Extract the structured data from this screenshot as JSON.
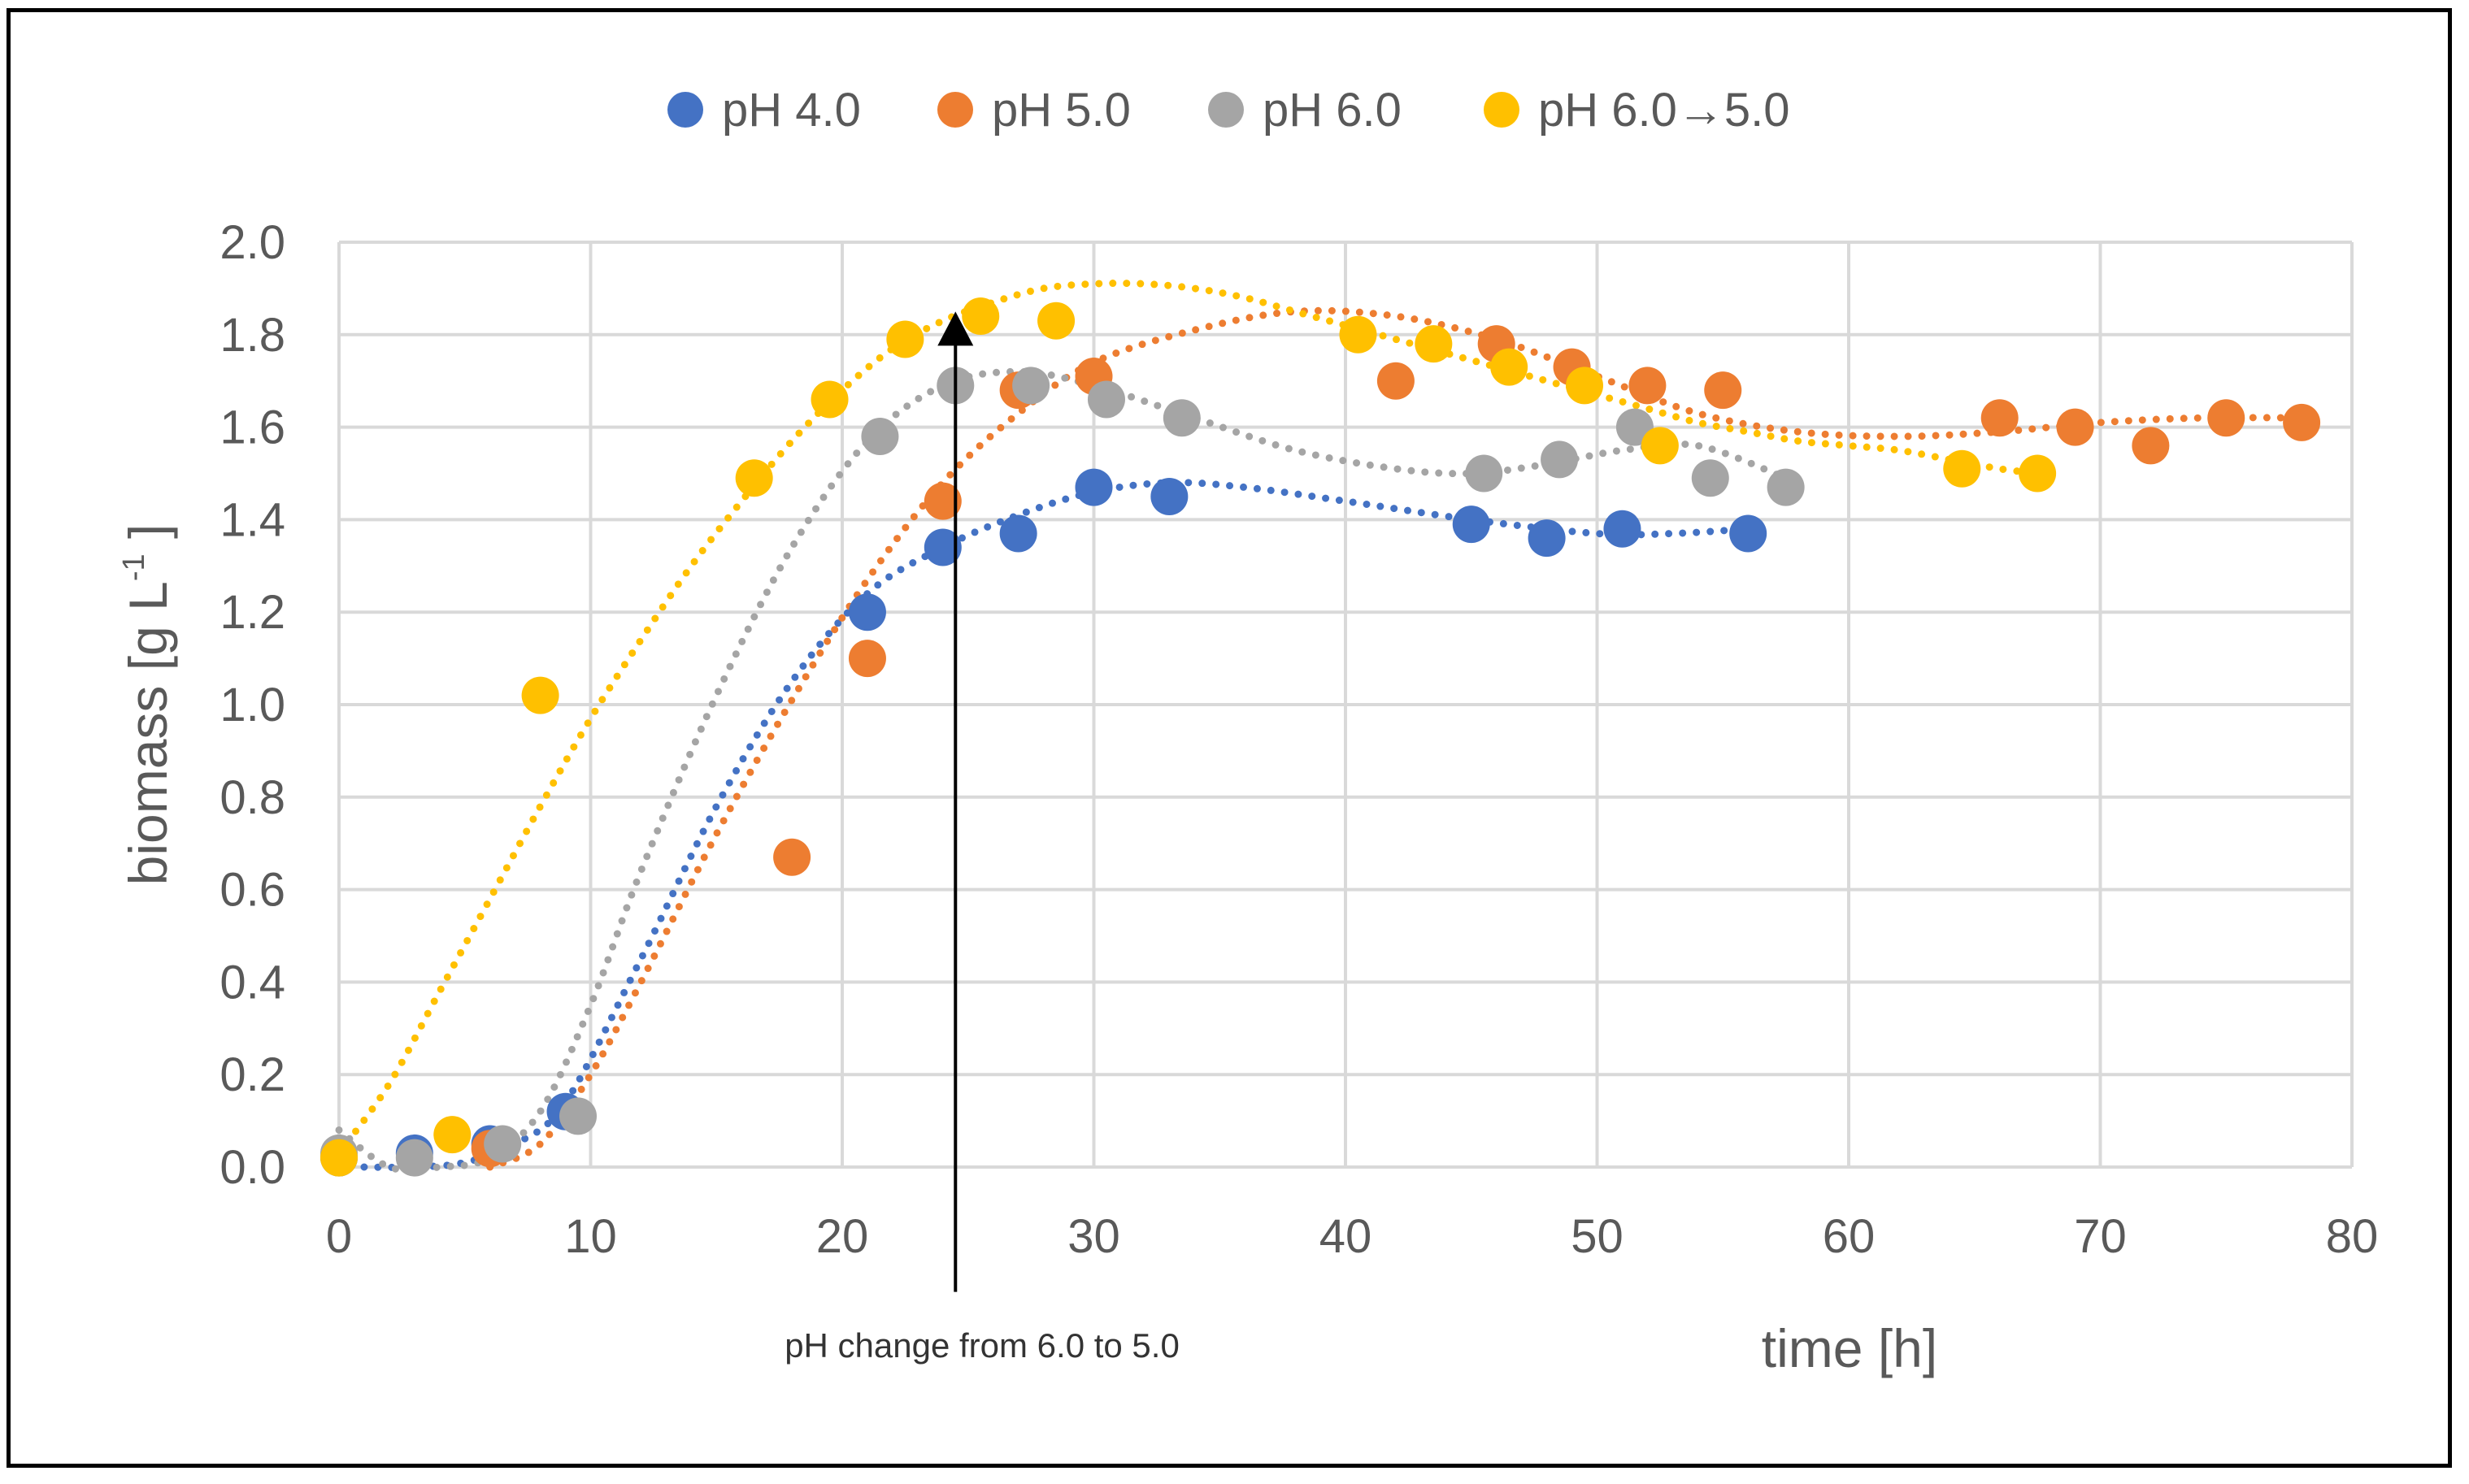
{
  "chart_data": {
    "type": "scatter",
    "title": "",
    "xlabel": "time [h]",
    "ylabel": {
      "prefix": "biomass [g L",
      "sup": "-1",
      "suffix": " ]"
    },
    "xlim": [
      0,
      80
    ],
    "ylim": [
      0,
      2.0
    ],
    "xticks": [
      "0",
      "10",
      "20",
      "30",
      "40",
      "50",
      "60",
      "70",
      "80"
    ],
    "yticks": [
      "0.0",
      "0.2",
      "0.4",
      "0.6",
      "0.8",
      "1.0",
      "1.2",
      "1.4",
      "1.6",
      "1.8",
      "2.0"
    ],
    "grid": true,
    "legend_position": "top",
    "series": [
      {
        "name": "pH 4.0",
        "color": "#4472C4",
        "x": [
          0,
          3,
          6,
          9,
          21,
          24,
          27,
          30,
          33,
          45,
          48,
          51,
          56
        ],
        "y": [
          0.02,
          0.03,
          0.05,
          0.12,
          1.2,
          1.34,
          1.37,
          1.47,
          1.45,
          1.39,
          1.36,
          1.38,
          1.37
        ],
        "trend_x": [
          1,
          3,
          5,
          7,
          9,
          12,
          15,
          18,
          21,
          24,
          27,
          30,
          33,
          36,
          40,
          45,
          50,
          53,
          56
        ],
        "trend_y": [
          0.0,
          0.0,
          0.01,
          0.05,
          0.14,
          0.45,
          0.78,
          1.05,
          1.24,
          1.34,
          1.41,
          1.46,
          1.48,
          1.47,
          1.44,
          1.4,
          1.37,
          1.37,
          1.38
        ]
      },
      {
        "name": "pH 5.0",
        "color": "#ED7D31",
        "x": [
          6,
          18,
          21,
          24,
          27,
          30,
          42,
          46,
          49,
          52,
          55,
          66,
          69,
          72,
          75,
          78
        ],
        "y": [
          0.04,
          0.67,
          1.1,
          1.44,
          1.68,
          1.71,
          1.7,
          1.78,
          1.73,
          1.69,
          1.68,
          1.62,
          1.6,
          1.56,
          1.62,
          1.61
        ],
        "trend_x": [
          6,
          8,
          10,
          12,
          15,
          18,
          21,
          24,
          27,
          30,
          34,
          38,
          42,
          46,
          50,
          54,
          58,
          62,
          66,
          70,
          74,
          78
        ],
        "trend_y": [
          0.0,
          0.05,
          0.2,
          0.4,
          0.72,
          1.01,
          1.27,
          1.48,
          1.63,
          1.74,
          1.81,
          1.85,
          1.84,
          1.79,
          1.71,
          1.63,
          1.59,
          1.58,
          1.59,
          1.61,
          1.62,
          1.62
        ]
      },
      {
        "name": "pH 6.0",
        "color": "#A5A5A5",
        "x": [
          0,
          3,
          6.5,
          9.5,
          21.5,
          24.5,
          27.5,
          30.5,
          33.5,
          45.5,
          48.5,
          51.5,
          54.5,
          57.5
        ],
        "y": [
          0.03,
          0.02,
          0.05,
          0.11,
          1.58,
          1.69,
          1.69,
          1.66,
          1.62,
          1.5,
          1.53,
          1.6,
          1.49,
          1.47
        ],
        "trend_x": [
          0,
          2,
          4,
          6,
          8,
          10,
          12,
          15,
          18,
          21,
          24,
          27,
          30,
          34,
          38,
          42,
          45,
          48,
          51,
          54,
          57.5
        ],
        "trend_y": [
          0.08,
          0.0,
          0.0,
          0.02,
          0.12,
          0.35,
          0.64,
          1.02,
          1.34,
          1.57,
          1.69,
          1.72,
          1.69,
          1.62,
          1.55,
          1.51,
          1.5,
          1.52,
          1.55,
          1.56,
          1.49
        ]
      },
      {
        "name": "pH 6.0→5.0",
        "color": "#FFC000",
        "x": [
          0,
          4.5,
          8,
          16.5,
          19.5,
          22.5,
          25.5,
          28.5,
          40.5,
          43.5,
          46.5,
          49.5,
          52.5,
          64.5,
          67.5
        ],
        "y": [
          0.02,
          0.07,
          1.02,
          1.49,
          1.66,
          1.79,
          1.84,
          1.83,
          1.8,
          1.78,
          1.73,
          1.69,
          1.56,
          1.51,
          1.5
        ],
        "trend_x": [
          0,
          2,
          4,
          6,
          8,
          10,
          12,
          14,
          16,
          18,
          20,
          22,
          24,
          26,
          28,
          30,
          32,
          34,
          36,
          38,
          40,
          42,
          44,
          46,
          48,
          50,
          52,
          54,
          56,
          58,
          60,
          62,
          64,
          66,
          67.5
        ],
        "trend_y": [
          0.03,
          0.18,
          0.38,
          0.58,
          0.78,
          0.97,
          1.14,
          1.3,
          1.44,
          1.57,
          1.68,
          1.77,
          1.83,
          1.87,
          1.9,
          1.91,
          1.91,
          1.9,
          1.88,
          1.85,
          1.82,
          1.79,
          1.76,
          1.73,
          1.7,
          1.67,
          1.64,
          1.61,
          1.59,
          1.57,
          1.56,
          1.55,
          1.53,
          1.51,
          1.5
        ]
      }
    ],
    "annotation": {
      "text": "pH change from 6.0 to 5.0",
      "x": 24.5,
      "y_from": -0.27,
      "y_to": 1.85
    }
  }
}
